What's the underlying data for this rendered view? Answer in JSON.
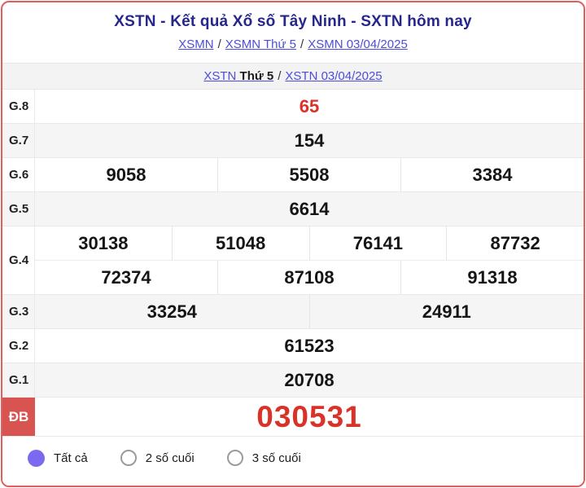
{
  "colors": {
    "card_border": "#e05e5e",
    "title_navy": "#26268b",
    "link_blue": "#4d4ddb",
    "special_red": "#d93229",
    "db_label_bg": "#d85451",
    "radio_purple": "#7b6af0"
  },
  "header": {
    "title": "XSTN - Kết quả Xổ số Tây Ninh - SXTN hôm nay",
    "separator": "/",
    "breadcrumb_row1": [
      "XSMN",
      "XSMN Thứ 5",
      "XSMN 03/04/2025"
    ],
    "breadcrumb_row2": {
      "link_prefix": "XSTN",
      "static_bold": "Thứ 5",
      "link_date": "XSTN 03/04/2025"
    }
  },
  "results": {
    "rows": [
      {
        "label": "G.8",
        "lines": [
          [
            "65"
          ]
        ],
        "red": true
      },
      {
        "label": "G.7",
        "lines": [
          [
            "154"
          ]
        ]
      },
      {
        "label": "G.6",
        "lines": [
          [
            "9058",
            "5508",
            "3384"
          ]
        ]
      },
      {
        "label": "G.5",
        "lines": [
          [
            "6614"
          ]
        ]
      },
      {
        "label": "G.4",
        "lines": [
          [
            "30138",
            "51048",
            "76141",
            "87732"
          ],
          [
            "72374",
            "87108",
            "91318"
          ]
        ]
      },
      {
        "label": "G.3",
        "lines": [
          [
            "33254",
            "24911"
          ]
        ]
      },
      {
        "label": "G.2",
        "lines": [
          [
            "61523"
          ]
        ]
      },
      {
        "label": "G.1",
        "lines": [
          [
            "20708"
          ]
        ]
      },
      {
        "label": "ĐB",
        "lines": [
          [
            "030531"
          ]
        ],
        "red": true,
        "special": true
      }
    ]
  },
  "footer": {
    "options": [
      {
        "label": "Tất cả",
        "selected": true
      },
      {
        "label": "2 số cuối",
        "selected": false
      },
      {
        "label": "3 số cuối",
        "selected": false
      }
    ]
  }
}
